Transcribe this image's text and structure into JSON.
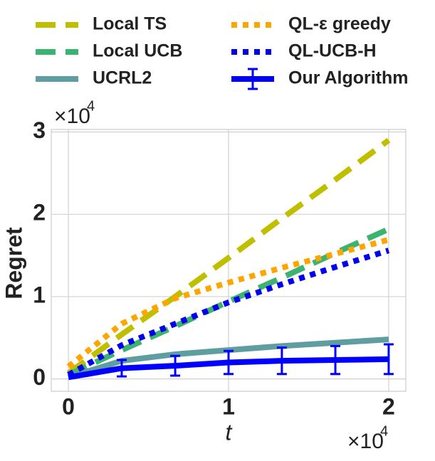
{
  "chart_data": {
    "type": "line",
    "xlabel": "t",
    "ylabel": "Regret",
    "x_multiplier": {
      "base": "×10",
      "exponent": "4"
    },
    "y_multiplier": {
      "base": "×10",
      "exponent": "4"
    },
    "x": [
      0,
      0.333,
      0.667,
      1,
      1.333,
      1.667,
      2
    ],
    "xlim": [
      -0.107,
      2.107
    ],
    "xticks": [
      0,
      1,
      2
    ],
    "ylim": [
      -0.15,
      3.03
    ],
    "yticks": [
      0,
      1,
      2,
      3
    ],
    "grid": true,
    "series": [
      {
        "name": "Local TS",
        "color": "#bfbf00",
        "dash": "dashed",
        "values": [
          0.07,
          0.54,
          1.0,
          1.47,
          1.95,
          2.42,
          2.9
        ]
      },
      {
        "name": "Local UCB",
        "color": "#3cb371",
        "dash": "dashed",
        "values": [
          0.05,
          0.35,
          0.64,
          0.94,
          1.23,
          1.53,
          1.82
        ]
      },
      {
        "name": "UCRL2",
        "color": "#5f9ea0",
        "dash": "solid",
        "values": [
          0.02,
          0.22,
          0.3,
          0.35,
          0.4,
          0.44,
          0.48
        ]
      },
      {
        "name": "QL-ε greedy",
        "color": "#ffa500",
        "dash": "dotted",
        "values": [
          0.15,
          0.67,
          0.98,
          1.17,
          1.35,
          1.52,
          1.69
        ]
      },
      {
        "name": "QL-UCB-H",
        "color": "#0000ee",
        "dash": "dotted",
        "values": [
          0.05,
          0.41,
          0.67,
          0.93,
          1.15,
          1.36,
          1.56
        ]
      },
      {
        "name": "Our Algorithm",
        "color": "#0000ff",
        "dash": "solid",
        "values": [
          0.02,
          0.13,
          0.16,
          0.2,
          0.22,
          0.23,
          0.24
        ],
        "errors": [
          null,
          0.1,
          0.12,
          0.14,
          0.16,
          0.17,
          0.18
        ]
      }
    ]
  }
}
